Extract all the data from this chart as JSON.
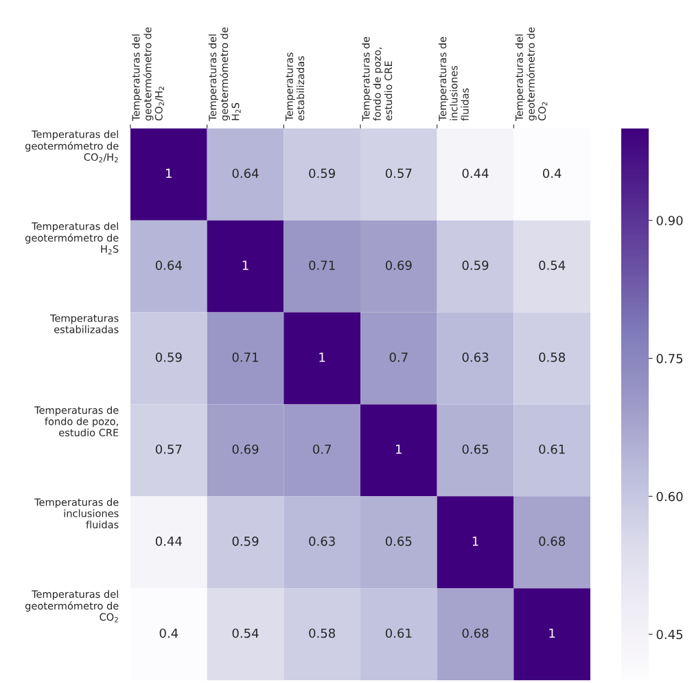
{
  "chart_data": {
    "type": "heatmap",
    "categories": [
      "Temperaturas del\ngeotermómetro de\nCO$_{2}$/H$_{2}$",
      "Temperaturas del\ngeotermómetro de\nH$_{2}$S",
      "Temperaturas\nestabilizadas",
      "Temperaturas de\nfondo de pozo,\nestudio CRE",
      "Temperaturas de\ninclusiones\nfluidas",
      "Temperaturas del\ngeotermómetro de\nCO$_{2}$"
    ],
    "y_categories": [
      "Temperaturas del\ngeotermómetro de\nCO$_{2}$/H$_{2}$",
      "Temperaturas del\ngeotermómetro de\nH$_{2}$S",
      "Temperaturas\nestabilizadas",
      "Temperaturas de\nfondo de pozo,\nestudio CRE",
      "Temperaturas de\ninclusiones\nfluidas",
      "Temperaturas del\ngeotermómetro de\nCO$_{2}$"
    ],
    "cells": [
      [
        1,
        0.64,
        0.59,
        0.57,
        0.44,
        0.4
      ],
      [
        0.64,
        1,
        0.71,
        0.69,
        0.59,
        0.54
      ],
      [
        0.59,
        0.71,
        1,
        0.7,
        0.63,
        0.58
      ],
      [
        0.57,
        0.69,
        0.7,
        1,
        0.65,
        0.61
      ],
      [
        0.44,
        0.59,
        0.63,
        0.65,
        1,
        0.68
      ],
      [
        0.4,
        0.54,
        0.58,
        0.61,
        0.68,
        1
      ]
    ],
    "clim": [
      0.4,
      1
    ],
    "cticks": [
      {
        "value": 0.45,
        "label": "0.45"
      },
      {
        "value": 0.6,
        "label": "0.60"
      },
      {
        "value": 0.75,
        "label": "0.75"
      },
      {
        "value": 0.9,
        "label": "0.90"
      }
    ],
    "data_labels": true
  }
}
